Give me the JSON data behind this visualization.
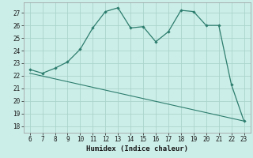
{
  "xlabel": "Humidex (Indice chaleur)",
  "x": [
    6,
    7,
    8,
    9,
    10,
    11,
    12,
    13,
    14,
    15,
    16,
    17,
    18,
    19,
    20,
    21,
    22,
    23
  ],
  "y_main": [
    22.5,
    22.2,
    22.6,
    23.1,
    24.1,
    25.8,
    27.1,
    27.4,
    25.8,
    25.9,
    24.7,
    25.5,
    27.2,
    27.1,
    26.0,
    26.0,
    21.3,
    18.4
  ],
  "y_line2_x": [
    6,
    23
  ],
  "y_line2_y": [
    22.2,
    18.4
  ],
  "line_color": "#2d7d6e",
  "bg_color": "#cceee8",
  "grid_major_color": "#aad4cc",
  "grid_minor_color": "#bbddd8",
  "text_color": "#1a1a1a",
  "xlim": [
    5.5,
    23.5
  ],
  "ylim": [
    17.5,
    27.8
  ],
  "yticks": [
    18,
    19,
    20,
    21,
    22,
    23,
    24,
    25,
    26,
    27
  ],
  "xticks": [
    6,
    7,
    8,
    9,
    10,
    11,
    12,
    13,
    14,
    15,
    16,
    17,
    18,
    19,
    20,
    21,
    22,
    23
  ]
}
